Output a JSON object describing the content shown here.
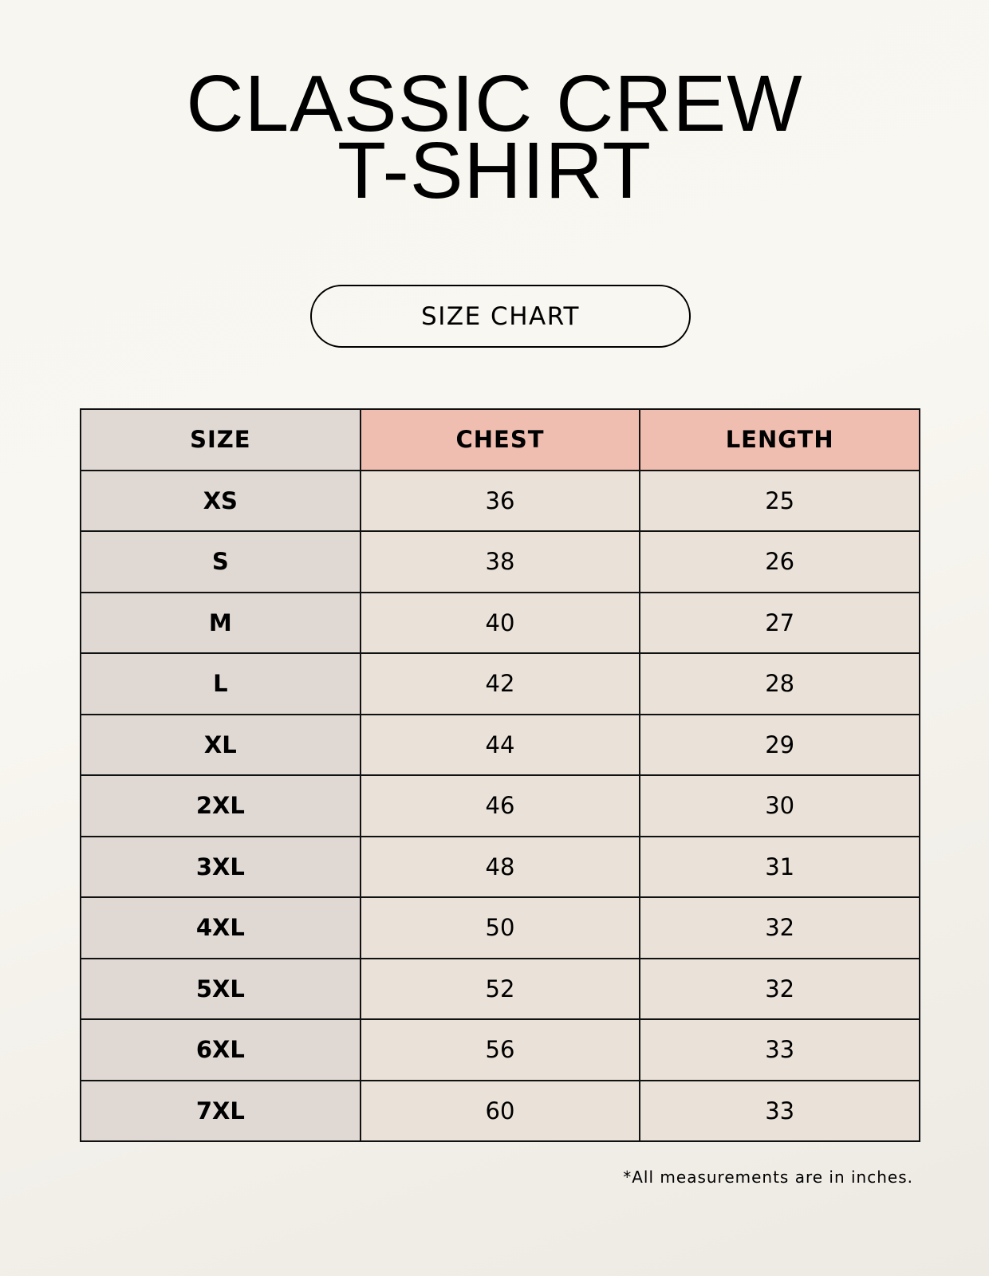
{
  "title_line1": "CLASSIC CREW",
  "title_line2": "T-SHIRT",
  "badge": "SIZE CHART",
  "table": {
    "headers": [
      "SIZE",
      "CHEST",
      "LENGTH"
    ],
    "rows": [
      [
        "XS",
        "36",
        "25"
      ],
      [
        "S",
        "38",
        "26"
      ],
      [
        "M",
        "40",
        "27"
      ],
      [
        "L",
        "42",
        "28"
      ],
      [
        "XL",
        "44",
        "29"
      ],
      [
        "2XL",
        "46",
        "30"
      ],
      [
        "3XL",
        "48",
        "31"
      ],
      [
        "4XL",
        "50",
        "32"
      ],
      [
        "5XL",
        "52",
        "32"
      ],
      [
        "6XL",
        "56",
        "33"
      ],
      [
        "7XL",
        "60",
        "33"
      ]
    ]
  },
  "footnote": "*All measurements are in inches.",
  "colors": {
    "header_accent": "#efbeb0",
    "size_column": "#e0d9d3",
    "value_cells": "#eae2d8"
  }
}
